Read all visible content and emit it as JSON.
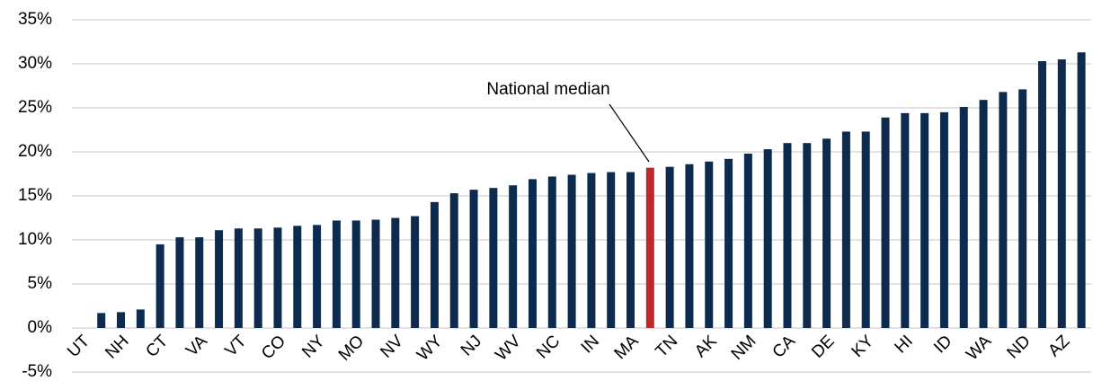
{
  "chart_data": {
    "type": "bar",
    "categories": [
      "UT",
      null,
      "NH",
      null,
      "CT",
      null,
      "VA",
      null,
      "VT",
      null,
      "CO",
      null,
      "NY",
      null,
      "MO",
      null,
      "NV",
      null,
      "WY",
      null,
      "NJ",
      null,
      "WV",
      null,
      "NC",
      null,
      "IN",
      null,
      "MA",
      null,
      "TN",
      null,
      "AK",
      null,
      "NM",
      null,
      "CA",
      null,
      "DE",
      null,
      "KY",
      null,
      "HI",
      null,
      "ID",
      null,
      "WA",
      null,
      "ND",
      null,
      "AZ",
      null
    ],
    "values": [
      0,
      1.7,
      1.8,
      2.1,
      9.5,
      10.3,
      10.3,
      11.1,
      11.3,
      11.3,
      11.4,
      11.6,
      11.7,
      12.2,
      12.2,
      12.3,
      12.5,
      12.7,
      14.3,
      15.3,
      15.7,
      15.9,
      16.2,
      16.9,
      17.2,
      17.4,
      17.6,
      17.7,
      17.7,
      18.2,
      18.3,
      18.6,
      18.9,
      19.2,
      19.8,
      20.3,
      21.0,
      21.0,
      21.5,
      22.3,
      22.3,
      23.9,
      24.4,
      24.4,
      24.5,
      25.1,
      25.9,
      26.8,
      27.1,
      30.3,
      30.5,
      31.3
    ],
    "colors": [
      "#0d2a4f",
      "#0d2a4f",
      "#0d2a4f",
      "#0d2a4f",
      "#0d2a4f",
      "#0d2a4f",
      "#0d2a4f",
      "#0d2a4f",
      "#0d2a4f",
      "#0d2a4f",
      "#0d2a4f",
      "#0d2a4f",
      "#0d2a4f",
      "#0d2a4f",
      "#0d2a4f",
      "#0d2a4f",
      "#0d2a4f",
      "#0d2a4f",
      "#0d2a4f",
      "#0d2a4f",
      "#0d2a4f",
      "#0d2a4f",
      "#0d2a4f",
      "#0d2a4f",
      "#0d2a4f",
      "#0d2a4f",
      "#0d2a4f",
      "#0d2a4f",
      "#0d2a4f",
      "#c0272d",
      "#0d2a4f",
      "#0d2a4f",
      "#0d2a4f",
      "#0d2a4f",
      "#0d2a4f",
      "#0d2a4f",
      "#0d2a4f",
      "#0d2a4f",
      "#0d2a4f",
      "#0d2a4f",
      "#0d2a4f",
      "#0d2a4f",
      "#0d2a4f",
      "#0d2a4f",
      "#0d2a4f",
      "#0d2a4f",
      "#0d2a4f",
      "#0d2a4f",
      "#0d2a4f",
      "#0d2a4f",
      "#0d2a4f",
      "#0d2a4f"
    ],
    "ylim": [
      -5,
      35
    ],
    "yticks": [
      {
        "value": -5,
        "label": "-5%"
      },
      {
        "value": 0,
        "label": "0%"
      },
      {
        "value": 5,
        "label": "5%"
      },
      {
        "value": 10,
        "label": "10%"
      },
      {
        "value": 15,
        "label": "15%"
      },
      {
        "value": 20,
        "label": "20%"
      },
      {
        "value": 25,
        "label": "25%"
      },
      {
        "value": 30,
        "label": "30%"
      },
      {
        "value": 35,
        "label": "35%"
      }
    ],
    "grid": true,
    "annotation": "National median"
  }
}
